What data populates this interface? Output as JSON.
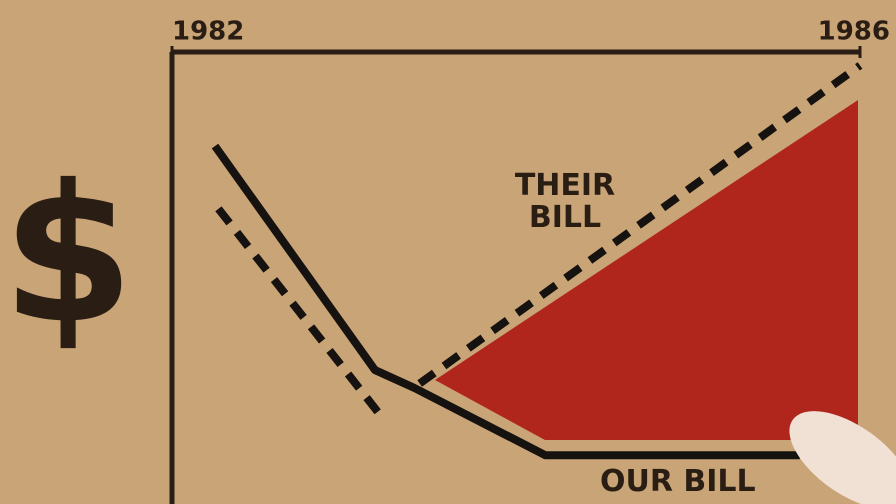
{
  "chart_data": {
    "type": "line",
    "y_label": "$",
    "xlim": [
      1982,
      1986
    ],
    "xticks": [
      1982,
      1986
    ],
    "ylim": [
      0,
      100
    ],
    "series": [
      {
        "name": "THEIR BILL",
        "color": "#161210",
        "dashed": true,
        "x": [
          1982.27,
          1983.21,
          null,
          1983.44,
          1986
        ],
        "values": [
          65,
          19,
          null,
          26,
          97
        ]
      },
      {
        "name": "OUR BILL",
        "color": "#161210",
        "dashed": false,
        "x": [
          1982.25,
          1983.18,
          1983.41,
          1984.17,
          1985.65
        ],
        "values": [
          79,
          29,
          25,
          10,
          10
        ]
      }
    ]
  }
}
